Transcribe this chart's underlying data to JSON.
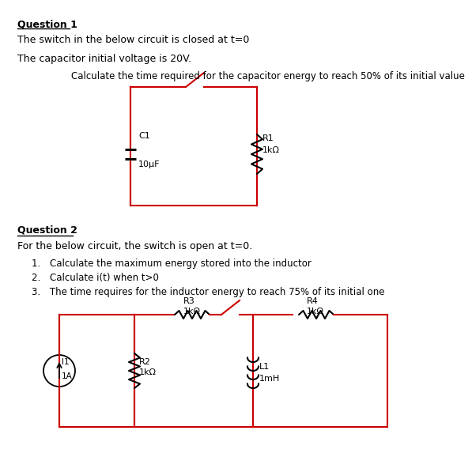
{
  "q1_title": "Question 1",
  "q1_line1": "The switch in the below circuit is closed at t=0",
  "q1_line2": "The capacitor initial voltage is 20V.",
  "q1_task": "Calculate the time required for the capacitor energy to reach 50% of its initial value",
  "q2_title": "Question 2",
  "q2_line1": "For the below circuit, the switch is open at t=0.",
  "q2_items": [
    "Calculate the maximum energy stored into the inductor",
    "Calculate i(t) when t>0",
    "The time requires for the inductor energy to reach 75% of its initial one"
  ],
  "circuit_color": "#cc0000",
  "text_color": "#000000",
  "bg_color": "#ffffff",
  "c1_label": "C1",
  "c1_value": "10μF",
  "r1_label": "R1",
  "r1_value": "1kΩ",
  "r2_label": "R2",
  "r2_value": "1kΩ",
  "r3_label": "R3",
  "r3_value": "1kΩ",
  "r4_label": "R4",
  "r4_value": "1kΩ",
  "l1_label": "L1",
  "l1_value": "1mH",
  "i1_label": "I1",
  "i1_value": "1A"
}
